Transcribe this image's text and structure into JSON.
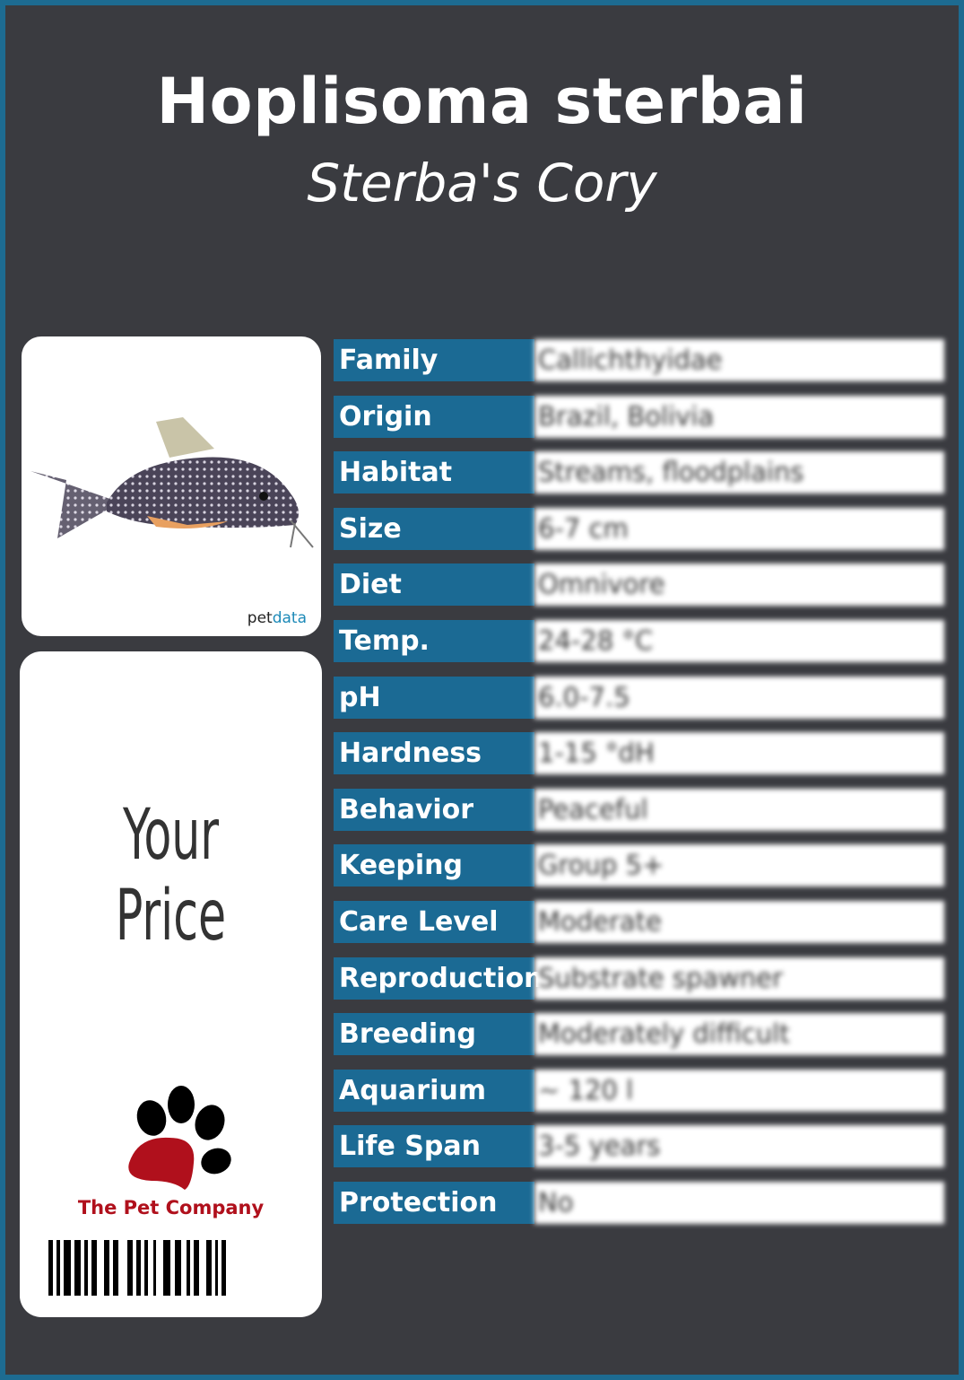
{
  "header": {
    "scientific_name": "Hoplisoma sterbai",
    "common_name": "Sterba's Cory"
  },
  "image_card": {
    "credit_prefix": "pet",
    "credit_suffix": "data"
  },
  "price_card": {
    "price_label": "Your Price",
    "brand": "The Pet Company"
  },
  "colors": {
    "frame": "#1d6b91",
    "background": "#3a3b40",
    "label_cell": "#1b6a94",
    "brand_red": "#b0101c"
  },
  "facts": [
    {
      "label": "Family",
      "value": "Callichthyidae"
    },
    {
      "label": "Origin",
      "value": "Brazil, Bolivia"
    },
    {
      "label": "Habitat",
      "value": "Streams, floodplains"
    },
    {
      "label": "Size",
      "value": "6-7 cm"
    },
    {
      "label": "Diet",
      "value": "Omnivore"
    },
    {
      "label": "Temp.",
      "value": "24-28 °C"
    },
    {
      "label": "pH",
      "value": "6.0-7.5"
    },
    {
      "label": "Hardness",
      "value": "1-15 °dH"
    },
    {
      "label": "Behavior",
      "value": "Peaceful"
    },
    {
      "label": "Keeping",
      "value": "Group 5+"
    },
    {
      "label": "Care Level",
      "value": "Moderate"
    },
    {
      "label": "Reproduction",
      "value": "Substrate spawner"
    },
    {
      "label": "Breeding",
      "value": "Moderately difficult"
    },
    {
      "label": "Aquarium",
      "value": "~ 120 l"
    },
    {
      "label": "Life Span",
      "value": "3-5 years"
    },
    {
      "label": "Protection",
      "value": "No"
    }
  ]
}
